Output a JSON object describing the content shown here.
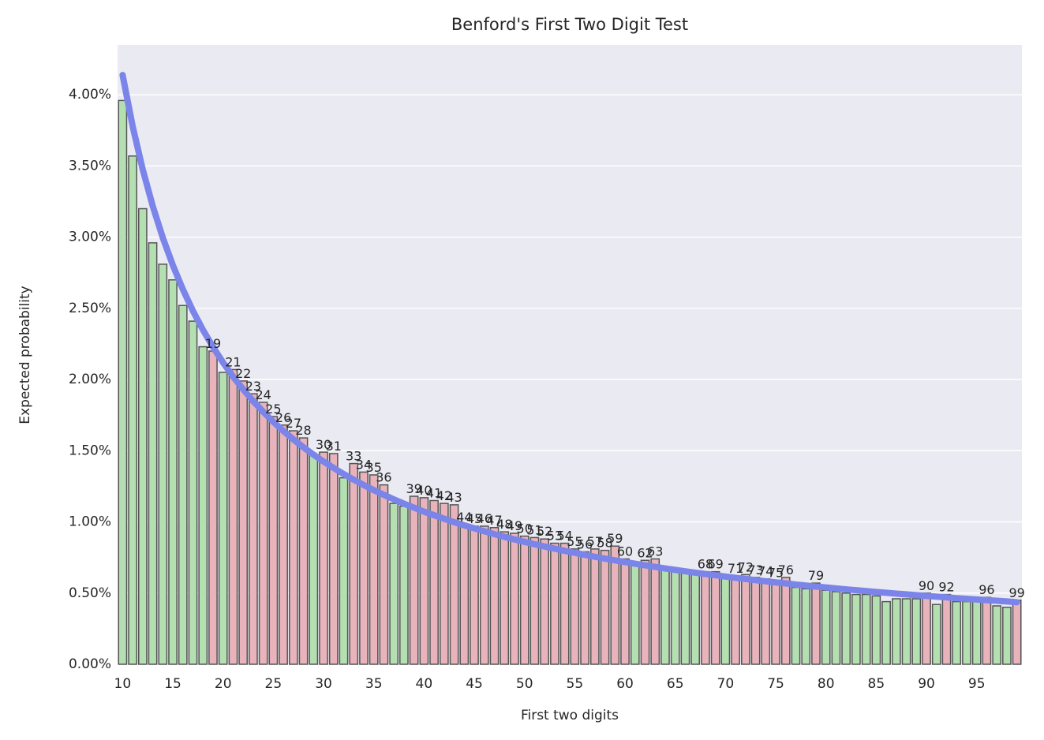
{
  "chart_data": {
    "type": "bar",
    "title": "Benford's First Two Digit Test",
    "x_label": "First two digits",
    "y_label": "Expected probability",
    "x": [
      10,
      11,
      12,
      13,
      14,
      15,
      16,
      17,
      18,
      19,
      20,
      21,
      22,
      23,
      24,
      25,
      26,
      27,
      28,
      29,
      30,
      31,
      32,
      33,
      34,
      35,
      36,
      37,
      38,
      39,
      40,
      41,
      42,
      43,
      44,
      45,
      46,
      47,
      48,
      49,
      50,
      51,
      52,
      53,
      54,
      55,
      56,
      57,
      58,
      59,
      60,
      61,
      62,
      63,
      64,
      65,
      66,
      67,
      68,
      69,
      70,
      71,
      72,
      73,
      74,
      75,
      76,
      77,
      78,
      79,
      80,
      81,
      82,
      83,
      84,
      85,
      86,
      87,
      88,
      89,
      90,
      91,
      92,
      93,
      94,
      95,
      96,
      97,
      98,
      99
    ],
    "values": [
      3.96,
      3.57,
      3.2,
      2.96,
      2.81,
      2.7,
      2.52,
      2.41,
      2.23,
      2.2,
      2.05,
      2.07,
      1.99,
      1.9,
      1.84,
      1.74,
      1.68,
      1.64,
      1.59,
      1.47,
      1.49,
      1.48,
      1.31,
      1.41,
      1.35,
      1.33,
      1.26,
      1.13,
      1.11,
      1.18,
      1.17,
      1.15,
      1.13,
      1.12,
      0.98,
      0.97,
      0.97,
      0.96,
      0.93,
      0.92,
      0.9,
      0.89,
      0.88,
      0.85,
      0.85,
      0.81,
      0.79,
      0.81,
      0.8,
      0.83,
      0.74,
      0.71,
      0.73,
      0.74,
      0.66,
      0.65,
      0.64,
      0.63,
      0.65,
      0.65,
      0.6,
      0.62,
      0.63,
      0.61,
      0.6,
      0.59,
      0.61,
      0.54,
      0.53,
      0.57,
      0.52,
      0.51,
      0.5,
      0.49,
      0.49,
      0.48,
      0.44,
      0.46,
      0.46,
      0.46,
      0.5,
      0.42,
      0.49,
      0.44,
      0.44,
      0.44,
      0.47,
      0.41,
      0.4,
      0.45
    ],
    "expected": [
      4.139,
      3.779,
      3.476,
      3.218,
      2.996,
      2.803,
      2.633,
      2.482,
      2.348,
      2.228,
      2.119,
      2.02,
      1.931,
      1.848,
      1.773,
      1.703,
      1.639,
      1.579,
      1.524,
      1.472,
      1.424,
      1.379,
      1.336,
      1.297,
      1.259,
      1.223,
      1.19,
      1.158,
      1.128,
      1.1,
      1.072,
      1.047,
      1.022,
      0.998,
      0.976,
      0.955,
      0.934,
      0.914,
      0.895,
      0.877,
      0.86,
      0.843,
      0.827,
      0.812,
      0.797,
      0.783,
      0.769,
      0.755,
      0.742,
      0.73,
      0.718,
      0.706,
      0.695,
      0.684,
      0.673,
      0.663,
      0.653,
      0.643,
      0.634,
      0.625,
      0.616,
      0.607,
      0.599,
      0.591,
      0.583,
      0.575,
      0.568,
      0.56,
      0.553,
      0.546,
      0.54,
      0.533,
      0.526,
      0.52,
      0.514,
      0.508,
      0.502,
      0.496,
      0.491,
      0.485,
      0.48,
      0.475,
      0.47,
      0.464,
      0.46,
      0.455,
      0.45,
      0.446,
      0.441,
      0.436
    ],
    "annotations": [
      19,
      21,
      22,
      23,
      24,
      25,
      26,
      27,
      28,
      30,
      31,
      33,
      34,
      35,
      36,
      39,
      40,
      41,
      42,
      43,
      44,
      45,
      46,
      47,
      48,
      49,
      50,
      51,
      52,
      53,
      54,
      55,
      56,
      57,
      58,
      59,
      60,
      62,
      63,
      68,
      69,
      71,
      72,
      73,
      74,
      75,
      76,
      79,
      90,
      92,
      96,
      99
    ],
    "color": "#b4dfb1",
    "highlight_color": "#e8b3bb",
    "line_color": "#7b84e8",
    "xlim": [
      9.5,
      99.5
    ],
    "ylim": [
      0,
      4.35
    ],
    "xticks": [
      10,
      15,
      20,
      25,
      30,
      35,
      40,
      45,
      50,
      55,
      60,
      65,
      70,
      75,
      80,
      85,
      90,
      95
    ],
    "yticks": [
      {
        "value": 0,
        "label": "0.00%"
      },
      {
        "value": 0.5,
        "label": "0.50%"
      },
      {
        "value": 1,
        "label": "1.00%"
      },
      {
        "value": 1.5,
        "label": "1.50%"
      },
      {
        "value": 2,
        "label": "2.00%"
      },
      {
        "value": 2.5,
        "label": "2.50%"
      },
      {
        "value": 3,
        "label": "3.00%"
      },
      {
        "value": 3.5,
        "label": "3.50%"
      },
      {
        "value": 4,
        "label": "4.00%"
      }
    ],
    "grid": true
  }
}
